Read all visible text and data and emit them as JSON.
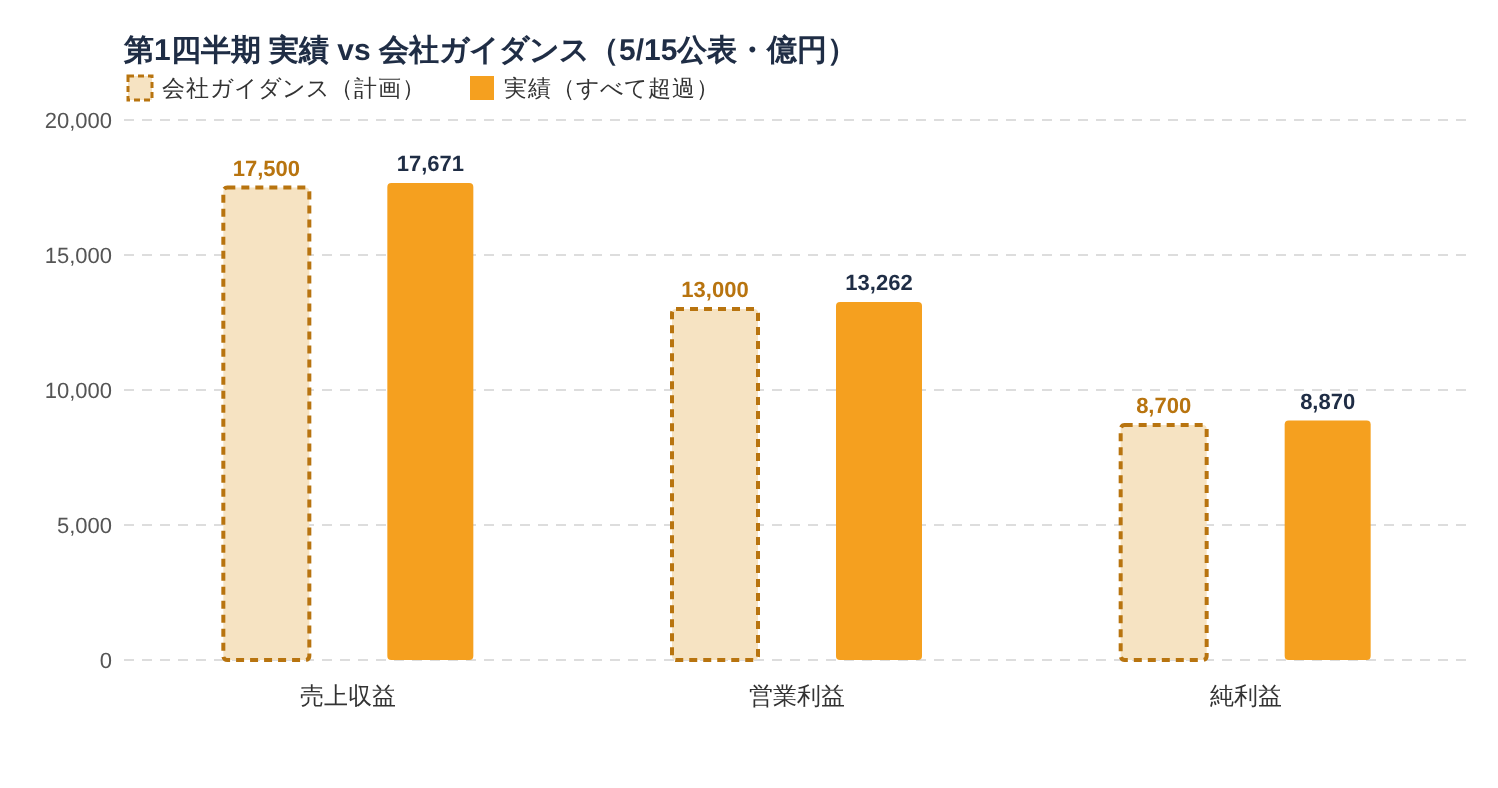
{
  "chart_data": {
    "type": "bar",
    "title": "第1四半期 実績 vs 会社ガイダンス（5/15公表・億円）",
    "categories": [
      "売上収益",
      "営業利益",
      "純利益"
    ],
    "series": [
      {
        "name": "会社ガイダンス（計画）",
        "color": "#f6e3c2",
        "line_style": "dashed",
        "values": [
          17500,
          13000,
          8700
        ],
        "value_labels": [
          "17,500",
          "13,000",
          "8,700"
        ]
      },
      {
        "name": "実績（すべて超過）",
        "color": "#f5a01f",
        "values": [
          17671,
          13262,
          8870
        ],
        "value_labels": [
          "17,671",
          "13,262",
          "8,870"
        ]
      }
    ],
    "ylim": [
      0,
      20000
    ],
    "yticks": [
      {
        "value": 0,
        "label": "0"
      },
      {
        "value": 5000,
        "label": "5,000"
      },
      {
        "value": 10000,
        "label": "10,000"
      },
      {
        "value": 15000,
        "label": "15,000"
      },
      {
        "value": 20000,
        "label": "20,000"
      }
    ],
    "grid": "y",
    "legend": "top left"
  }
}
